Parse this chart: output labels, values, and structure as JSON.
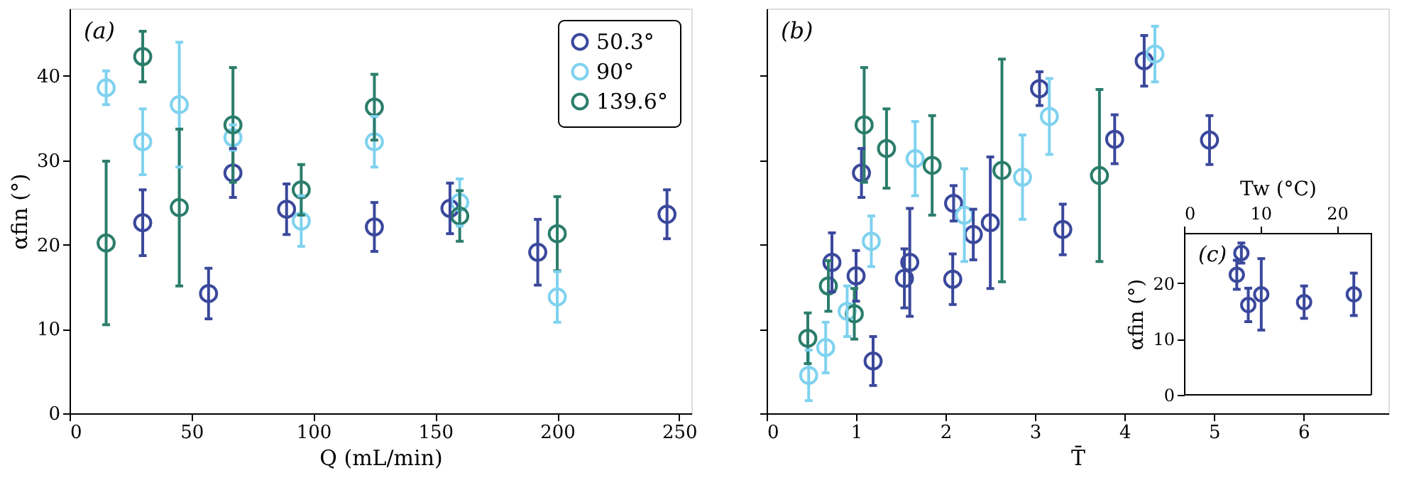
{
  "chart_data": [
    {
      "type": "scatter",
      "annotations": [
        "(a)"
      ],
      "xlabel": "Q (mL/min)",
      "ylabel": "αfin (°)",
      "xlim": [
        0,
        255
      ],
      "xticks": [
        0,
        50,
        100,
        150,
        200,
        250
      ],
      "ylim": [
        0,
        48
      ],
      "yticks": [
        0,
        10,
        20,
        30,
        40
      ],
      "marker": "circle",
      "legend": "top right",
      "series": [
        {
          "name": "50.3°",
          "color": "#3a489c",
          "x": [
            30,
            57,
            67,
            89,
            125,
            156,
            192,
            245
          ],
          "values": [
            22.6,
            14.2,
            28.5,
            24.2,
            22.1,
            24.3,
            19.1,
            23.6
          ],
          "errors": [
            3.9,
            3,
            2.9,
            3,
            2.9,
            3,
            3.9,
            2.9
          ]
        },
        {
          "name": "90°",
          "color": "#7fd2ef",
          "x": [
            15,
            30,
            45,
            67,
            95,
            125,
            160,
            200
          ],
          "values": [
            38.6,
            32.2,
            36.6,
            32.7,
            22.8,
            32.2,
            25,
            13.8
          ],
          "errors": [
            2,
            3.9,
            7.4,
            1.5,
            3,
            3,
            2.8,
            3
          ]
        },
        {
          "name": "139.6°",
          "color": "#2b7d6b",
          "x": [
            15,
            30,
            45,
            67,
            95,
            125,
            160,
            200
          ],
          "values": [
            20.2,
            42.3,
            24.4,
            34.2,
            26.5,
            36.3,
            23.4,
            21.3
          ],
          "errors": [
            9.7,
            3,
            9.3,
            6.8,
            3,
            3.9,
            3,
            4.4
          ]
        }
      ]
    },
    {
      "type": "scatter",
      "annotations": [
        "(b)"
      ],
      "xlabel": "T̄",
      "xlim": [
        0,
        6.95
      ],
      "xticks": [
        0,
        1,
        2,
        3,
        4,
        5,
        6
      ],
      "ylim": [
        0,
        48
      ],
      "yticks": [
        0,
        10,
        20,
        30,
        40
      ],
      "tick_labels": "x",
      "marker": "circle",
      "series": [
        {
          "color": "#3a489c",
          "x": [
            0.73,
            1.0,
            1.06,
            1.19,
            1.54,
            1.6,
            2.08,
            2.09,
            2.31,
            2.5,
            3.05,
            3.31,
            3.89,
            4.22,
            4.95
          ],
          "values": [
            17.9,
            16.3,
            28.5,
            6.2,
            16,
            17.9,
            15.9,
            24.9,
            21.2,
            22.6,
            38.5,
            21.8,
            32.5,
            41.8,
            32.4
          ],
          "errors": [
            3.5,
            3,
            2.9,
            2.9,
            3.5,
            6.4,
            3,
            2.1,
            3,
            7.8,
            2,
            3,
            2.9,
            3,
            2.9
          ]
        },
        {
          "color": "#7fd2ef",
          "x": [
            0.47,
            0.66,
            0.9,
            1.17,
            1.66,
            2.21,
            2.86,
            3.16,
            4.34
          ],
          "values": [
            4.5,
            7.8,
            12.1,
            20.4,
            30.2,
            23.5,
            28,
            35.2,
            42.6
          ],
          "errors": [
            3,
            3,
            3,
            3,
            4.4,
            5.5,
            5,
            4.5,
            3.3
          ]
        },
        {
          "color": "#2b7d6b",
          "x": [
            0.46,
            0.69,
            0.98,
            1.09,
            1.34,
            1.85,
            2.63,
            3.72
          ],
          "values": [
            8.9,
            15.1,
            11.8,
            34.2,
            31.4,
            29.4,
            28.8,
            28.2
          ],
          "errors": [
            3,
            3,
            3,
            6.8,
            4.7,
            5.9,
            13.2,
            10.2
          ]
        }
      ]
    },
    {
      "type": "scatter",
      "annotations": [
        "(c)"
      ],
      "xlabel": "Tw (°C)",
      "ylabel": "αfin (°)",
      "xlim": [
        0,
        24.5
      ],
      "xticks": [
        0,
        10,
        20
      ],
      "ylim": [
        0,
        29
      ],
      "yticks": [
        0,
        10,
        20
      ],
      "marker": "circle",
      "series": [
        {
          "color": "#3a489c",
          "x": [
            6.9,
            7.5,
            8.4,
            10.1,
            15.7,
            22.2
          ],
          "values": [
            21.5,
            25.4,
            16.1,
            18,
            16.6,
            18
          ],
          "errors": [
            2.6,
            1.8,
            3,
            6.4,
            2.9,
            3.8
          ]
        }
      ]
    }
  ]
}
